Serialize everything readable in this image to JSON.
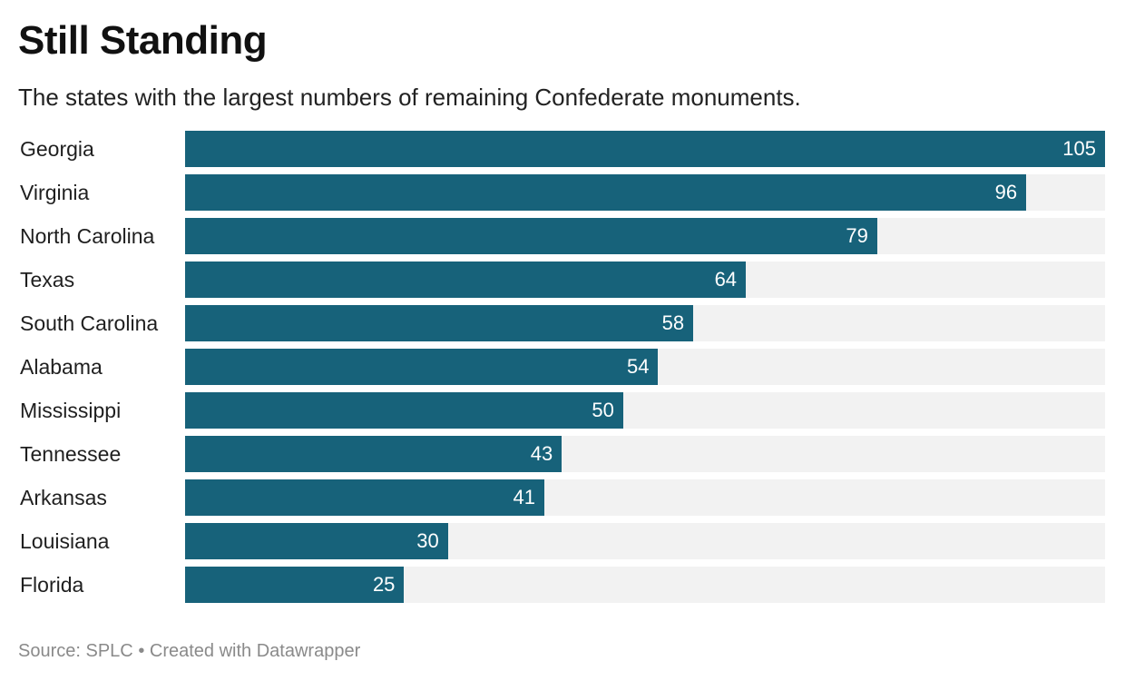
{
  "chart_data": {
    "type": "bar",
    "orientation": "horizontal",
    "title": "Still Standing",
    "subtitle": "The states with the largest numbers of remaining Confederate monuments.",
    "categories": [
      "Georgia",
      "Virginia",
      "North Carolina",
      "Texas",
      "South Carolina",
      "Alabama",
      "Mississippi",
      "Tennessee",
      "Arkansas",
      "Louisiana",
      "Florida"
    ],
    "values": [
      105,
      96,
      79,
      64,
      58,
      54,
      50,
      43,
      41,
      30,
      25
    ],
    "xlim": [
      0,
      105
    ],
    "grid": false,
    "legend": "none",
    "colors": {
      "bar": "#17627a",
      "track": "#f2f2f2",
      "value_label": "#ffffff"
    }
  },
  "footer": {
    "source_label": "Source:",
    "source": "SPLC",
    "separator": "•",
    "credit": "Created with Datawrapper"
  }
}
